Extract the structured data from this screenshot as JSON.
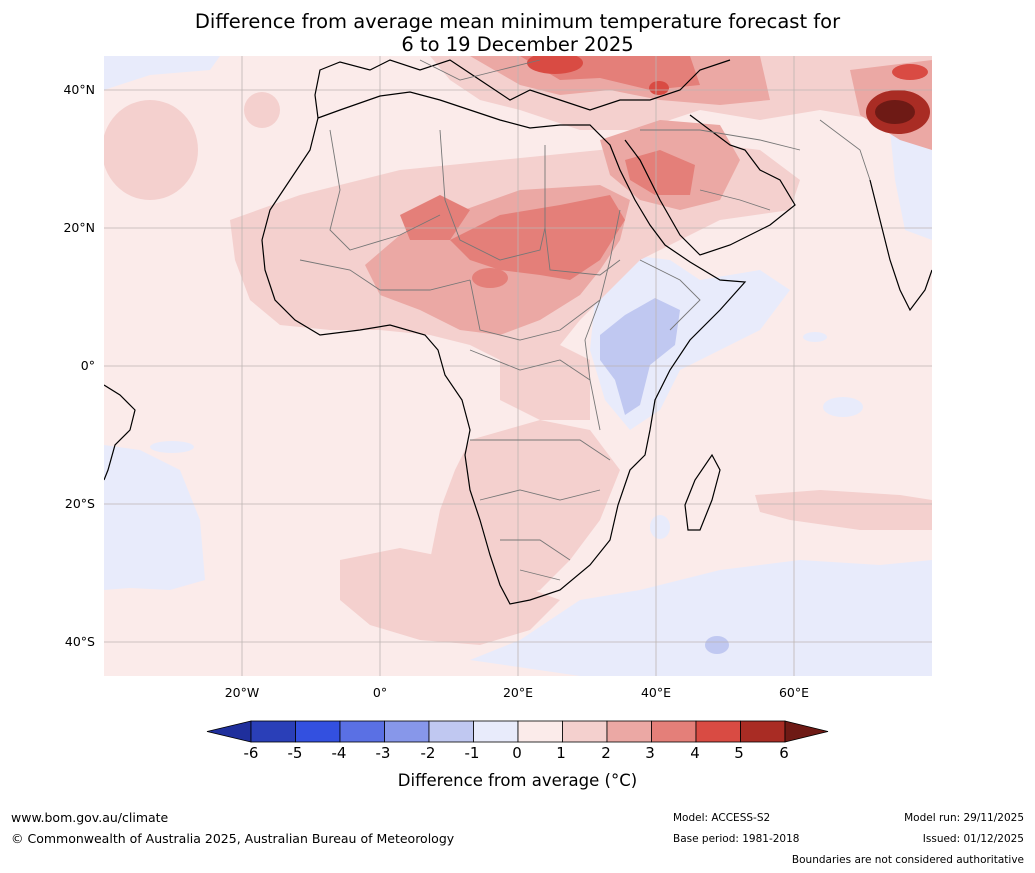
{
  "title": {
    "line1": "Difference from average mean minimum temperature forecast for",
    "line2": "6 to 19 December 2025"
  },
  "map": {
    "lat_labels": [
      "40°N",
      "20°N",
      "0°",
      "20°S",
      "40°S"
    ],
    "lat_values": [
      40,
      20,
      0,
      -20,
      -40
    ],
    "lon_labels": [
      "20°W",
      "0°",
      "20°E",
      "40°E",
      "60°E"
    ],
    "lon_values": [
      -20,
      0,
      20,
      40,
      60
    ],
    "lon_range": [
      -40,
      80
    ],
    "lat_range": [
      -45,
      45
    ]
  },
  "colorbar": {
    "ticks": [
      "-6",
      "-5",
      "-4",
      "-3",
      "-2",
      "-1",
      "0",
      "1",
      "2",
      "3",
      "4",
      "5",
      "6"
    ],
    "colors": [
      "#1f2f9c",
      "#2a3fb8",
      "#3350e0",
      "#5a70e4",
      "#8797ea",
      "#c0c8f1",
      "#e8ebfb",
      "#fbebea",
      "#f4d0ce",
      "#eba8a4",
      "#e47f79",
      "#d94b43",
      "#a92c24",
      "#6e1a15"
    ],
    "label": "Difference from average (°C)"
  },
  "footer": {
    "url": "www.bom.gov.au/climate",
    "copyright": "© Commonwealth of Australia 2025, Australian Bureau of Meteorology",
    "model": "Model: ACCESS-S2",
    "base_period": "Base period: 1981-2018",
    "model_run": "Model run: 29/11/2025",
    "issued": "Issued: 01/12/2025",
    "disclaimer": "Boundaries are not considered authoritative"
  }
}
